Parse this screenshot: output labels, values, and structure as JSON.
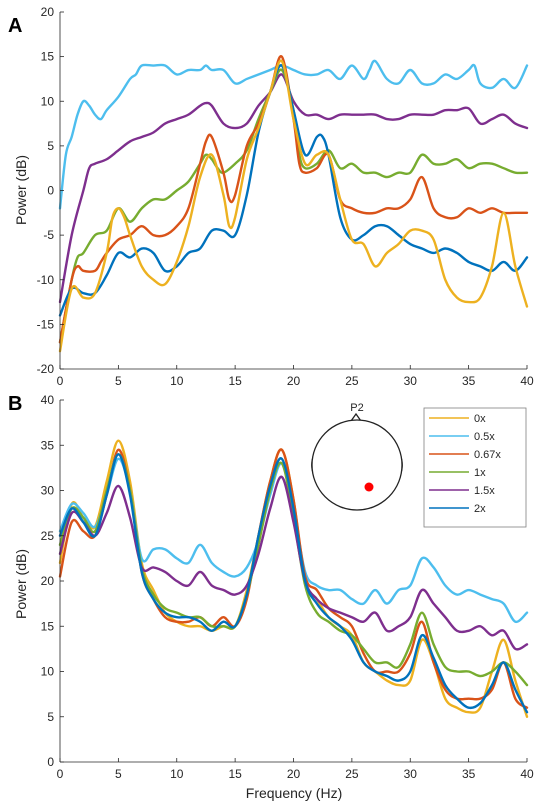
{
  "chart_data": [
    {
      "type": "line",
      "panel_label": "A",
      "xlabel": "",
      "ylabel": "Power (dB)",
      "xlim": [
        0,
        40
      ],
      "ylim": [
        -20,
        20
      ],
      "xticks": [
        0,
        5,
        10,
        15,
        20,
        25,
        30,
        35,
        40
      ],
      "yticks": [
        -20,
        -15,
        -10,
        -5,
        0,
        5,
        10,
        15,
        20
      ],
      "grid": false,
      "series": [
        {
          "color": "#4DBEEE",
          "x": [
            0,
            0.5,
            1,
            1.5,
            2,
            2.5,
            3,
            3.5,
            4,
            5,
            6,
            6.5,
            7,
            8,
            9,
            10,
            11,
            12,
            12.5,
            13,
            14,
            15,
            16,
            17,
            18,
            19,
            20,
            21,
            22,
            23,
            24,
            25,
            26,
            26.5,
            27,
            28,
            29,
            30,
            31,
            32,
            33,
            34,
            35,
            35.5,
            36,
            37,
            38,
            39,
            40
          ],
          "y": [
            -2,
            4,
            6,
            8.5,
            10,
            9.5,
            8.5,
            8,
            9,
            10.5,
            12.5,
            13,
            14,
            14,
            14,
            13,
            13.5,
            13.5,
            14,
            13.5,
            13.5,
            12,
            12.5,
            13,
            13.5,
            14,
            13.5,
            13,
            13,
            13.5,
            12.5,
            14,
            12.5,
            13.5,
            14.5,
            12.5,
            12,
            13.5,
            12,
            12,
            13,
            12.5,
            13.5,
            14,
            12,
            11.5,
            12.5,
            11.5,
            14
          ]
        },
        {
          "color": "#7E2F8E",
          "x": [
            0,
            1,
            2,
            2.5,
            3,
            4,
            5,
            6,
            7,
            8,
            9,
            10,
            11,
            12,
            12.5,
            13,
            14,
            15,
            16,
            17,
            18,
            19,
            20,
            21,
            22,
            23,
            24,
            25,
            26,
            27,
            28,
            29,
            30,
            31,
            32,
            33,
            34,
            35,
            36,
            37,
            38,
            39,
            40
          ],
          "y": [
            -12.5,
            -5,
            0,
            2.5,
            3,
            3.5,
            4.5,
            5.5,
            6,
            6.5,
            7.5,
            8,
            8.5,
            9.5,
            9.8,
            9.5,
            7.5,
            7,
            7.5,
            9.5,
            11,
            13,
            10,
            8.5,
            8.5,
            8,
            8.5,
            8.5,
            8.5,
            8.5,
            8,
            8,
            8.5,
            8.5,
            8.5,
            9,
            9,
            9.2,
            7.5,
            8,
            8.5,
            7.5,
            7
          ]
        },
        {
          "color": "#77AC30",
          "x": [
            0,
            1,
            1.5,
            2,
            3,
            4,
            5,
            6,
            7,
            8,
            9,
            10,
            11,
            12,
            12.5,
            13,
            13.5,
            14,
            15,
            16,
            17,
            18,
            19,
            20,
            20.5,
            21,
            22,
            23,
            24,
            25,
            26,
            27,
            28,
            29,
            30,
            31,
            32,
            33,
            34,
            35,
            36,
            37,
            38,
            39,
            40
          ],
          "y": [
            -17,
            -10,
            -7.5,
            -7,
            -5,
            -4.5,
            -2,
            -3.5,
            -2,
            -1,
            -1,
            0,
            1,
            3,
            4,
            3.5,
            2.5,
            2,
            3,
            4.5,
            8,
            11,
            13.5,
            9,
            4,
            2.5,
            3,
            4.5,
            2.5,
            3,
            2,
            2,
            1.5,
            2,
            2,
            4,
            3,
            3,
            3.5,
            2.5,
            3,
            3,
            2.5,
            2,
            2
          ]
        },
        {
          "color": "#D95319",
          "x": [
            0,
            1,
            1.5,
            2,
            3,
            3.5,
            4,
            5,
            6,
            7,
            8,
            9,
            10,
            11,
            12,
            12.5,
            13,
            14,
            14.5,
            15,
            16,
            17,
            18,
            19,
            20,
            20.5,
            21,
            22,
            23,
            24,
            25,
            26,
            27,
            28,
            29,
            30,
            31,
            32,
            33,
            34,
            35,
            36,
            37,
            38,
            39,
            40
          ],
          "y": [
            -17,
            -10,
            -8.5,
            -9,
            -9,
            -8,
            -7,
            -5.5,
            -5,
            -4,
            -5,
            -5,
            -4,
            -2,
            3,
            5.5,
            6,
            2,
            -1,
            -0.5,
            5,
            7.5,
            11,
            15,
            8,
            3,
            2,
            2.5,
            4,
            -1,
            -2,
            -2.5,
            -2.5,
            -2,
            -2,
            -1,
            1.5,
            -2,
            -3,
            -3,
            -2,
            -2.5,
            -2,
            -2.5,
            -2.5,
            -2.5
          ]
        },
        {
          "color": "#0072BD",
          "x": [
            0,
            1,
            2,
            3,
            4,
            5,
            6,
            7,
            8,
            9,
            10,
            11,
            12,
            13,
            14,
            15,
            16,
            17,
            18,
            19,
            20,
            21,
            22,
            22.5,
            23,
            24,
            25,
            26,
            27,
            28,
            29,
            30,
            31,
            32,
            33,
            34,
            35,
            36,
            37,
            38,
            39,
            40
          ],
          "y": [
            -14,
            -11,
            -11.5,
            -11.5,
            -9.5,
            -7,
            -7.5,
            -6.5,
            -7,
            -9,
            -8.5,
            -7,
            -6.5,
            -4.5,
            -4.5,
            -5,
            -0.5,
            6.5,
            11,
            14,
            9,
            4,
            6,
            6,
            4,
            -3,
            -5.5,
            -5,
            -4,
            -4,
            -5,
            -6,
            -6.5,
            -7,
            -6.5,
            -7,
            -8,
            -8.5,
            -9,
            -8,
            -9,
            -7.5
          ]
        },
        {
          "color": "#EDB120",
          "x": [
            0,
            1,
            2,
            3,
            4,
            4.5,
            5,
            5.5,
            6,
            7,
            8,
            9,
            10,
            11,
            12,
            13,
            14,
            14.5,
            15,
            16,
            17,
            18,
            19,
            20,
            21,
            22,
            23,
            24,
            25,
            26,
            27,
            28,
            29,
            30,
            31,
            32,
            33,
            34,
            35,
            36,
            37,
            38,
            39,
            40
          ],
          "y": [
            -18,
            -11,
            -12,
            -11.5,
            -7,
            -3,
            -2,
            -3,
            -5,
            -8.5,
            -10,
            -10.5,
            -8,
            -4,
            1.5,
            4,
            -0.5,
            -4,
            -3,
            3.5,
            7,
            11,
            14.5,
            8,
            3,
            4,
            4,
            -1,
            -5.5,
            -6,
            -8.5,
            -7,
            -6,
            -4.5,
            -4.5,
            -5.5,
            -10,
            -12,
            -12.5,
            -12,
            -8.5,
            -2.5,
            -8.5,
            -13
          ]
        }
      ]
    },
    {
      "type": "line",
      "panel_label": "B",
      "xlabel": "Frequency (Hz)",
      "ylabel": "Power (dB)",
      "xlim": [
        0,
        40
      ],
      "ylim": [
        0,
        40
      ],
      "xticks": [
        0,
        5,
        10,
        15,
        20,
        25,
        30,
        35,
        40
      ],
      "yticks": [
        0,
        5,
        10,
        15,
        20,
        25,
        30,
        35,
        40
      ],
      "grid": false,
      "legend_position": "top-right",
      "series": [
        {
          "name": "0x",
          "color": "#EDB120",
          "x": [
            0,
            1,
            2,
            3,
            4,
            5,
            6,
            7,
            8,
            9,
            10,
            11,
            12,
            13,
            14,
            15,
            16,
            17,
            18,
            19,
            20,
            21,
            22,
            23,
            24,
            25,
            26,
            27,
            28,
            29,
            30,
            31,
            32,
            33,
            34,
            35,
            36,
            37,
            38,
            39,
            40
          ],
          "y": [
            22,
            28.5,
            27,
            26,
            31,
            35.5,
            31,
            22,
            19,
            16.5,
            15.5,
            15,
            15,
            14.5,
            15,
            15,
            19,
            25,
            31,
            34.5,
            29,
            20,
            18,
            16,
            15,
            14,
            11,
            10,
            9,
            8.5,
            9,
            13.5,
            11,
            7,
            6,
            5.5,
            6,
            10,
            13.5,
            9,
            5
          ]
        },
        {
          "name": "0.5x",
          "color": "#4DBEEE",
          "x": [
            0,
            1,
            2,
            3,
            4,
            5,
            6,
            7,
            8,
            9,
            10,
            11,
            12,
            13,
            14,
            15,
            16,
            17,
            18,
            19,
            20,
            21,
            22,
            23,
            24,
            25,
            26,
            27,
            28,
            29,
            30,
            31,
            32,
            33,
            34,
            35,
            36,
            37,
            38,
            39,
            40
          ],
          "y": [
            25.5,
            28.5,
            27.5,
            26,
            29.5,
            33.5,
            30,
            22.5,
            23.5,
            23.5,
            22.5,
            22,
            24,
            22,
            21,
            20.5,
            21.5,
            24.5,
            29.5,
            33,
            28,
            21,
            19.5,
            19,
            19,
            18,
            17.5,
            19,
            17.5,
            19,
            19.5,
            22.5,
            21.5,
            19.5,
            18.5,
            19,
            18.5,
            18,
            17.5,
            15.5,
            16.5
          ]
        },
        {
          "name": "0.67x",
          "color": "#D95319",
          "x": [
            0,
            1,
            2,
            3,
            4,
            5,
            6,
            7,
            8,
            9,
            10,
            11,
            12,
            13,
            14,
            15,
            16,
            17,
            18,
            19,
            20,
            21,
            22,
            23,
            24,
            25,
            26,
            27,
            28,
            29,
            30,
            31,
            32,
            33,
            34,
            35,
            36,
            37,
            38,
            39,
            40
          ],
          "y": [
            20.5,
            26.5,
            25.5,
            25,
            29.5,
            34.5,
            30,
            21,
            18,
            16,
            15.5,
            15.5,
            16,
            15,
            16,
            15,
            18,
            25,
            31,
            34.5,
            29,
            20.5,
            19,
            17,
            16,
            15,
            12,
            10,
            10,
            10,
            12,
            15.5,
            11,
            8,
            7,
            7,
            7,
            8,
            11,
            7,
            6
          ]
        },
        {
          "name": "1x",
          "color": "#77AC30",
          "x": [
            0,
            1,
            2,
            3,
            4,
            5,
            6,
            7,
            8,
            9,
            10,
            11,
            12,
            13,
            14,
            15,
            16,
            17,
            18,
            19,
            20,
            21,
            22,
            23,
            24,
            25,
            26,
            27,
            28,
            29,
            30,
            31,
            32,
            33,
            34,
            35,
            36,
            37,
            38,
            39,
            40
          ],
          "y": [
            24,
            28,
            27,
            25.5,
            30,
            34,
            30,
            21.5,
            18.5,
            17,
            16.5,
            16,
            16,
            15,
            15,
            15,
            18.5,
            24,
            30,
            33,
            27,
            19.5,
            16.5,
            15.5,
            14.5,
            14,
            12.5,
            11,
            11,
            10.5,
            13,
            16.5,
            13,
            10.5,
            10,
            10,
            9.5,
            10,
            11,
            10,
            8.5
          ]
        },
        {
          "name": "1.5x",
          "color": "#7E2F8E",
          "x": [
            0,
            1,
            2,
            3,
            4,
            5,
            6,
            7,
            8,
            9,
            10,
            11,
            12,
            13,
            14,
            15,
            16,
            17,
            18,
            19,
            20,
            21,
            22,
            23,
            24,
            25,
            26,
            27,
            28,
            29,
            30,
            31,
            32,
            33,
            34,
            35,
            36,
            37,
            38,
            39,
            40
          ],
          "y": [
            23,
            27.5,
            26.5,
            25,
            27.5,
            30.5,
            27,
            21.5,
            21.5,
            21,
            20,
            19.5,
            21,
            19.5,
            19,
            18.5,
            19.5,
            23,
            28,
            31.5,
            26.5,
            20,
            18,
            17,
            16.5,
            16,
            15.5,
            16.5,
            14.5,
            15,
            16,
            19,
            17.5,
            16,
            14.5,
            14.5,
            15,
            14,
            14.5,
            12.5,
            13
          ]
        },
        {
          "name": "2x",
          "color": "#0072BD",
          "x": [
            0,
            1,
            2,
            3,
            4,
            5,
            6,
            7,
            8,
            9,
            10,
            11,
            12,
            13,
            14,
            15,
            16,
            17,
            18,
            19,
            20,
            21,
            22,
            23,
            24,
            25,
            26,
            27,
            28,
            29,
            30,
            31,
            32,
            33,
            34,
            35,
            36,
            37,
            38,
            39,
            40
          ],
          "y": [
            25,
            28,
            26.5,
            25,
            29.5,
            34,
            29.5,
            21,
            18,
            16.5,
            16,
            16,
            15.5,
            14.5,
            15.5,
            15,
            18.5,
            25,
            30.5,
            33.5,
            28,
            20,
            17.5,
            16,
            15,
            13.5,
            11,
            10,
            9.5,
            9,
            10,
            14,
            11.5,
            8.5,
            7,
            6,
            6.5,
            8.5,
            11,
            8,
            5.5
          ]
        }
      ],
      "inset": {
        "title": "P2",
        "electrode_color": "#FF0000"
      }
    }
  ]
}
